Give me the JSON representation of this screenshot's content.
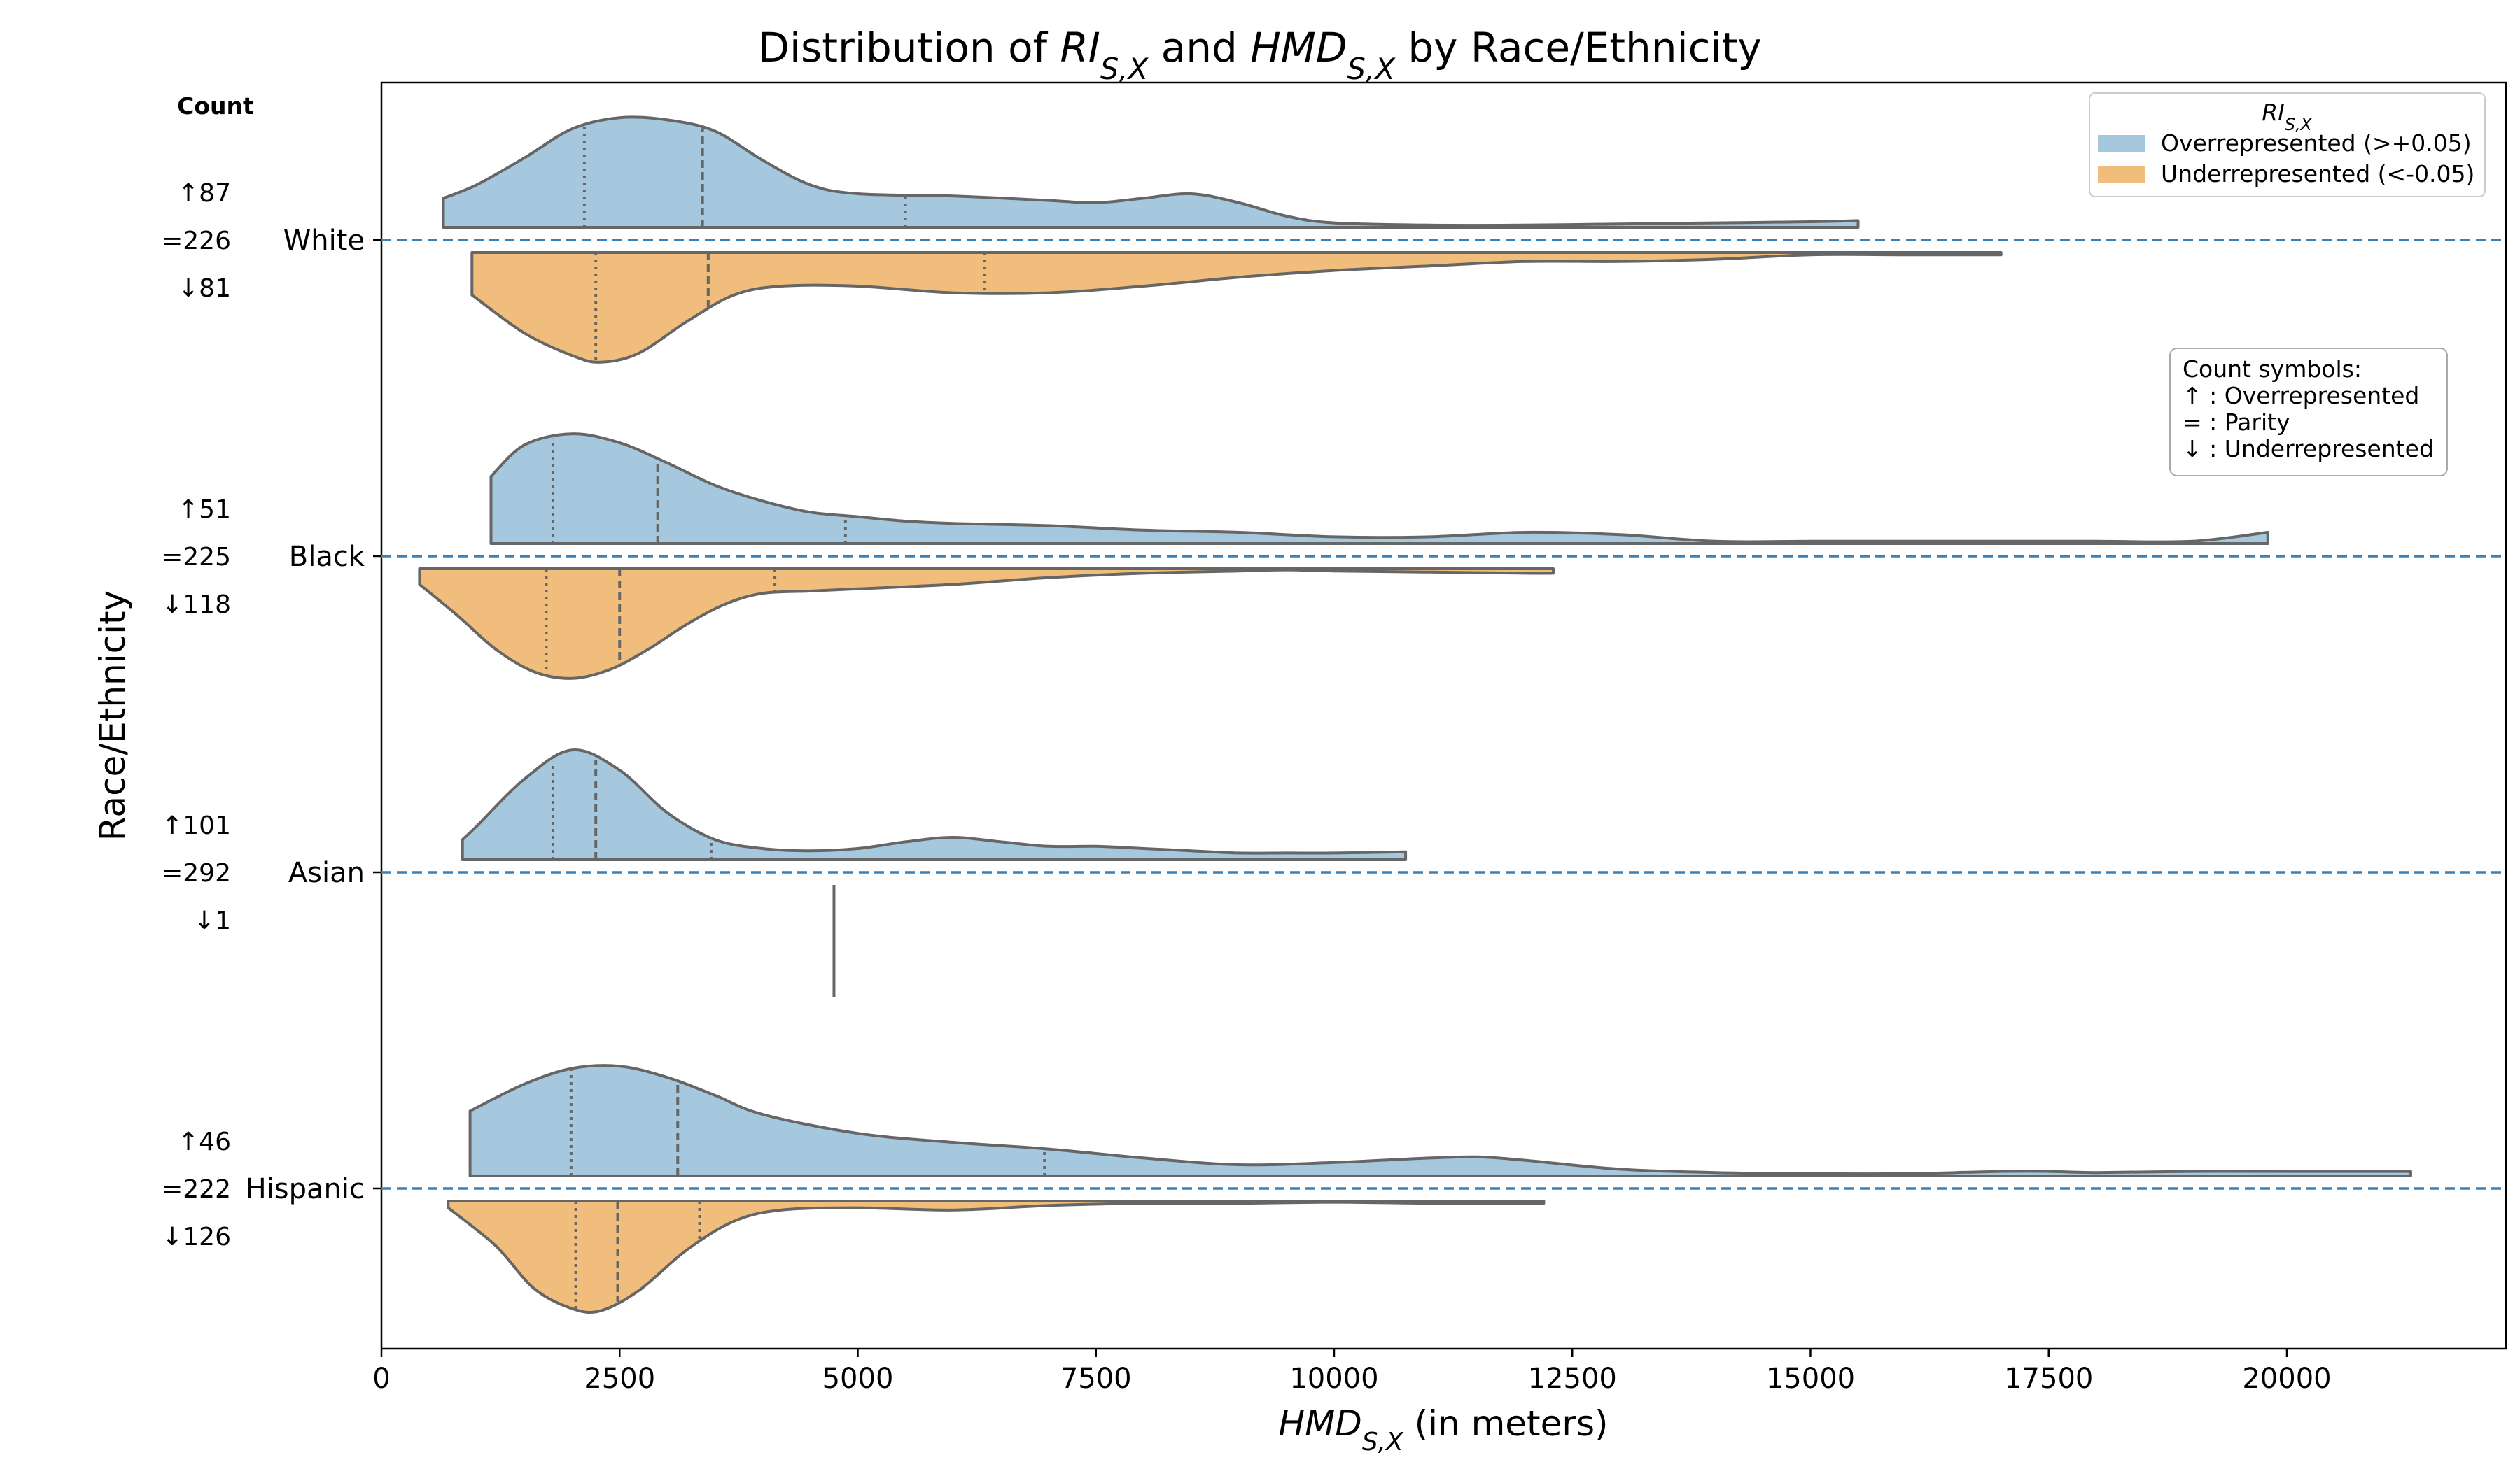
{
  "chart_data": {
    "type": "violin",
    "title_parts": [
      "Distribution of ",
      "RI",
      "S,X",
      " and ",
      "HMD",
      "S,X",
      " by Race/Ethnicity"
    ],
    "xlabel_parts": [
      "HMD",
      "S,X",
      " (in meters)"
    ],
    "ylabel": "Race/Ethnicity",
    "count_header": "Count",
    "xlim": [
      0,
      22300
    ],
    "x_ticks": [
      0,
      2500,
      5000,
      7500,
      10000,
      12500,
      15000,
      17500,
      20000
    ],
    "x_tick_labels": [
      "0",
      "2500",
      "5000",
      "7500",
      "10000",
      "12500",
      "15000",
      "17500",
      "20000"
    ],
    "colors": {
      "over": "#a6c8de",
      "under": "#f0bd7c",
      "outline": "#666666",
      "divider": "#3a80b8"
    },
    "legend": {
      "title_parts": [
        "RI",
        "S,X"
      ],
      "entries": [
        "Overrepresented (>+0.05)",
        "Underrepresented (<-0.05)"
      ],
      "placement": "top-right"
    },
    "symbols_box": [
      "Count symbols:",
      "↑ : Overrepresented",
      "= : Parity",
      "↓ : Underrepresented"
    ],
    "groups": [
      {
        "name": "White",
        "counts": [
          "↑87",
          "=226",
          "↓81"
        ],
        "over": {
          "x": [
            650,
            1000,
            1500,
            2000,
            2500,
            3000,
            3500,
            4000,
            4500,
            5000,
            6000,
            7000,
            7500,
            8000,
            8500,
            9000,
            9500,
            10000,
            11000,
            12000,
            13000,
            14000,
            15000,
            15500
          ],
          "density": [
            0.26,
            0.38,
            0.62,
            0.88,
            0.98,
            0.96,
            0.86,
            0.6,
            0.38,
            0.3,
            0.28,
            0.24,
            0.22,
            0.26,
            0.3,
            0.22,
            0.1,
            0.04,
            0.02,
            0.02,
            0.03,
            0.04,
            0.05,
            0.06
          ],
          "quartiles": [
            2130,
            3370,
            5500
          ]
        },
        "under": {
          "x": [
            950,
            1500,
            2000,
            2300,
            2700,
            3200,
            3700,
            4200,
            5000,
            6000,
            7000,
            8000,
            9000,
            10000,
            11000,
            12000,
            13000,
            14000,
            15000,
            16000,
            17000
          ],
          "density": [
            0.38,
            0.72,
            0.92,
            0.98,
            0.9,
            0.62,
            0.38,
            0.3,
            0.3,
            0.36,
            0.36,
            0.3,
            0.22,
            0.16,
            0.12,
            0.08,
            0.08,
            0.06,
            0.02,
            0.02,
            0.02
          ],
          "quartiles": [
            2250,
            3430,
            6330
          ]
        }
      },
      {
        "name": "Black",
        "counts": [
          "↑51",
          "=225",
          "↓118"
        ],
        "over": {
          "x": [
            1150,
            1500,
            2000,
            2500,
            3000,
            3500,
            4000,
            4500,
            5000,
            5500,
            6000,
            7000,
            8000,
            9000,
            10000,
            11000,
            12000,
            13000,
            14000,
            15000,
            16000,
            17000,
            18000,
            19000,
            19800
          ],
          "density": [
            0.6,
            0.88,
            0.98,
            0.9,
            0.72,
            0.52,
            0.38,
            0.28,
            0.24,
            0.2,
            0.18,
            0.16,
            0.12,
            0.1,
            0.06,
            0.06,
            0.1,
            0.08,
            0.02,
            0.02,
            0.02,
            0.02,
            0.02,
            0.02,
            0.1
          ],
          "quartiles": [
            1800,
            2900,
            4870
          ]
        },
        "under": {
          "x": [
            400,
            800,
            1200,
            1600,
            2000,
            2400,
            2800,
            3200,
            3600,
            4000,
            4500,
            5000,
            6000,
            7000,
            8000,
            9000,
            9500,
            10000,
            11000,
            12000,
            12300
          ],
          "density": [
            0.14,
            0.42,
            0.72,
            0.92,
            0.98,
            0.9,
            0.72,
            0.5,
            0.32,
            0.22,
            0.2,
            0.18,
            0.14,
            0.08,
            0.04,
            0.02,
            0.01,
            0.02,
            0.03,
            0.04,
            0.04
          ],
          "quartiles": [
            1730,
            2500,
            4130
          ]
        }
      },
      {
        "name": "Asian",
        "counts": [
          "↑101",
          "=292",
          "↓1"
        ],
        "over": {
          "x": [
            850,
            1000,
            1500,
            2000,
            2500,
            3000,
            3500,
            4000,
            4500,
            5000,
            5500,
            6000,
            6500,
            7000,
            7500,
            8000,
            8500,
            9000,
            9500,
            10000,
            10750
          ],
          "density": [
            0.18,
            0.3,
            0.72,
            0.98,
            0.8,
            0.42,
            0.18,
            0.1,
            0.08,
            0.1,
            0.16,
            0.2,
            0.16,
            0.12,
            0.12,
            0.1,
            0.08,
            0.06,
            0.06,
            0.06,
            0.07
          ],
          "quartiles": [
            1800,
            2250,
            3460
          ]
        },
        "under": {
          "single": 4750
        }
      },
      {
        "name": "Hispanic",
        "counts": [
          "↑46",
          "=222",
          "↓126"
        ],
        "over": {
          "x": [
            930,
            1500,
            2000,
            2500,
            3000,
            3500,
            4000,
            5000,
            6000,
            7000,
            8000,
            9000,
            10000,
            11000,
            11500,
            12000,
            13000,
            14000,
            15000,
            16000,
            17000,
            17500,
            18000,
            19000,
            20000,
            21300
          ],
          "density": [
            0.58,
            0.82,
            0.96,
            0.98,
            0.88,
            0.72,
            0.55,
            0.38,
            0.3,
            0.24,
            0.16,
            0.1,
            0.12,
            0.16,
            0.17,
            0.14,
            0.06,
            0.03,
            0.02,
            0.02,
            0.04,
            0.04,
            0.03,
            0.04,
            0.04,
            0.04
          ],
          "quartiles": [
            1990,
            3110,
            6960
          ]
        },
        "under": {
          "x": [
            700,
            1200,
            1600,
            2000,
            2300,
            2700,
            3200,
            3700,
            4200,
            5000,
            6000,
            7000,
            8000,
            9000,
            10000,
            11000,
            12000,
            12200
          ],
          "density": [
            0.06,
            0.4,
            0.78,
            0.96,
            0.98,
            0.8,
            0.44,
            0.18,
            0.08,
            0.06,
            0.08,
            0.04,
            0.02,
            0.02,
            0.01,
            0.02,
            0.02,
            0.02
          ],
          "quartiles": [
            2040,
            2480,
            3340
          ]
        }
      }
    ]
  }
}
